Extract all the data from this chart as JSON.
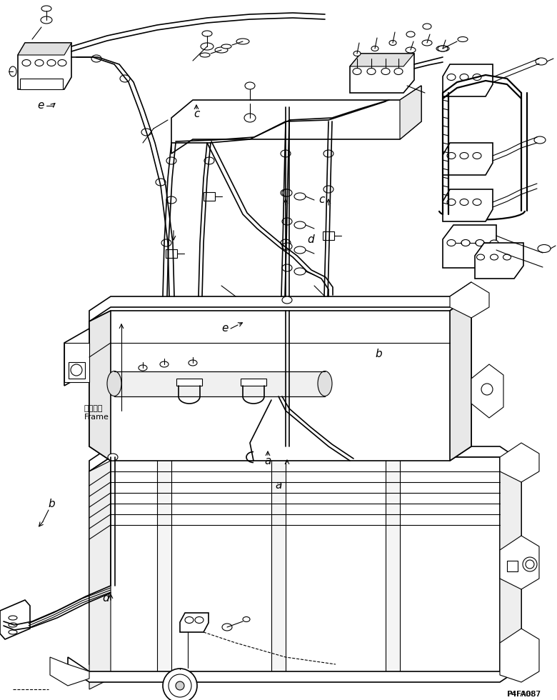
{
  "part_number": "P4FA087",
  "background_color": "#ffffff",
  "line_color": "#000000",
  "figsize": [
    7.8,
    9.8
  ],
  "dpi": 100,
  "frame_ja": "フレーム",
  "frame_en": "Frame"
}
